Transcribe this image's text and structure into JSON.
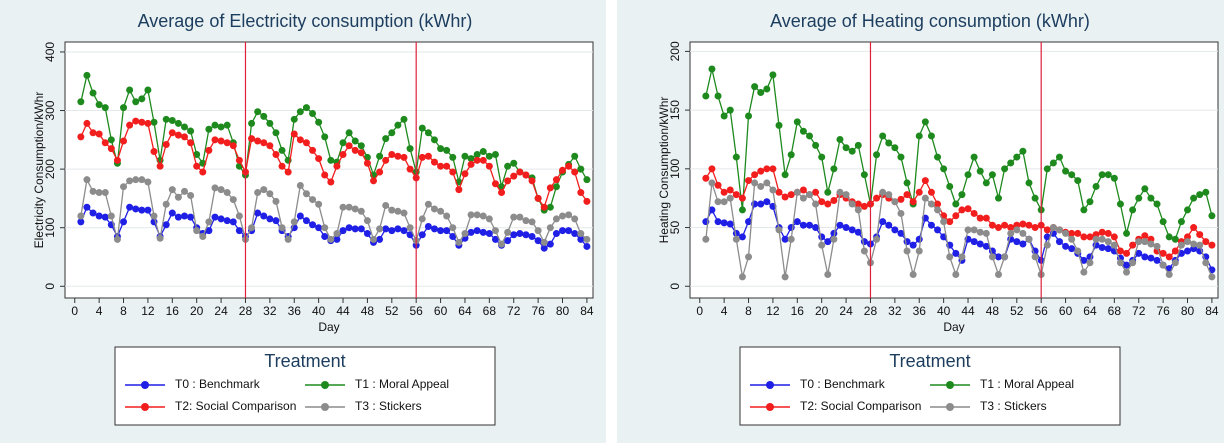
{
  "chart_data": [
    {
      "type": "line",
      "title": "Average of Electricity consumption (kWhr)",
      "x_label": "Day",
      "y_label": "Electricity Consumption/kWhr",
      "x": [
        1,
        2,
        3,
        4,
        5,
        6,
        7,
        8,
        9,
        10,
        11,
        12,
        13,
        14,
        15,
        16,
        17,
        18,
        19,
        20,
        21,
        22,
        23,
        24,
        25,
        26,
        27,
        28,
        29,
        30,
        31,
        32,
        33,
        34,
        35,
        36,
        37,
        38,
        39,
        40,
        41,
        42,
        43,
        44,
        45,
        46,
        47,
        48,
        49,
        50,
        51,
        52,
        53,
        54,
        55,
        56,
        57,
        58,
        59,
        60,
        61,
        62,
        63,
        64,
        65,
        66,
        67,
        68,
        69,
        70,
        71,
        72,
        73,
        74,
        75,
        76,
        77,
        78,
        79,
        80,
        81,
        82,
        83,
        84
      ],
      "xlim": [
        -1.6,
        85
      ],
      "xticks": [
        0,
        4,
        8,
        12,
        16,
        20,
        24,
        28,
        32,
        36,
        40,
        44,
        48,
        52,
        56,
        60,
        64,
        68,
        72,
        76,
        80,
        84
      ],
      "ylim": [
        -20,
        417
      ],
      "yticks": [
        0,
        100,
        200,
        300,
        400
      ],
      "xlines": [
        28,
        56
      ],
      "xline_color": "#e0203a",
      "grid": true,
      "legend_title": "Treatment",
      "series": [
        {
          "name": "T0 : Benchmark",
          "color": "#1f1fe6",
          "values": [
            110,
            135,
            125,
            120,
            118,
            105,
            85,
            110,
            135,
            132,
            130,
            130,
            110,
            85,
            105,
            125,
            118,
            120,
            118,
            100,
            90,
            95,
            118,
            115,
            112,
            110,
            95,
            85,
            95,
            125,
            120,
            115,
            112,
            95,
            85,
            100,
            120,
            112,
            105,
            100,
            85,
            78,
            80,
            95,
            100,
            98,
            98,
            90,
            75,
            80,
            98,
            95,
            98,
            95,
            88,
            70,
            88,
            102,
            98,
            95,
            95,
            85,
            70,
            82,
            92,
            95,
            92,
            90,
            80,
            70,
            78,
            88,
            90,
            88,
            85,
            78,
            65,
            72,
            90,
            95,
            95,
            90,
            80,
            68
          ]
        },
        {
          "name": "T1 : Moral Appeal",
          "color": "#1e8a1e",
          "values": [
            315,
            360,
            330,
            310,
            305,
            250,
            210,
            305,
            335,
            315,
            320,
            335,
            280,
            215,
            285,
            283,
            278,
            272,
            265,
            225,
            210,
            268,
            275,
            272,
            275,
            245,
            205,
            190,
            278,
            298,
            290,
            278,
            262,
            232,
            215,
            285,
            298,
            305,
            295,
            280,
            255,
            215,
            212,
            245,
            262,
            248,
            240,
            220,
            190,
            222,
            252,
            262,
            275,
            285,
            235,
            195,
            270,
            262,
            250,
            235,
            232,
            220,
            178,
            222,
            218,
            225,
            230,
            222,
            225,
            170,
            205,
            210,
            195,
            190,
            185,
            150,
            130,
            135,
            170,
            195,
            208,
            222,
            200,
            182
          ]
        },
        {
          "name": "T2: Social Comparison",
          "color": "#f21d1d",
          "values": [
            255,
            278,
            262,
            260,
            245,
            235,
            215,
            248,
            275,
            282,
            280,
            278,
            230,
            205,
            242,
            262,
            258,
            255,
            245,
            205,
            195,
            232,
            250,
            248,
            245,
            240,
            215,
            195,
            252,
            248,
            245,
            240,
            225,
            205,
            195,
            260,
            250,
            245,
            232,
            218,
            190,
            178,
            205,
            225,
            240,
            232,
            228,
            210,
            180,
            195,
            215,
            225,
            222,
            220,
            200,
            185,
            220,
            222,
            212,
            205,
            205,
            195,
            165,
            192,
            208,
            215,
            215,
            205,
            175,
            160,
            180,
            188,
            195,
            190,
            180,
            150,
            135,
            168,
            182,
            198,
            205,
            195,
            160,
            145
          ]
        },
        {
          "name": "T3 : Stickers",
          "color": "#8c8c8c",
          "values": [
            120,
            182,
            162,
            160,
            160,
            120,
            80,
            170,
            180,
            182,
            182,
            178,
            120,
            82,
            140,
            165,
            152,
            162,
            155,
            95,
            85,
            110,
            168,
            165,
            160,
            148,
            120,
            80,
            100,
            160,
            165,
            158,
            145,
            100,
            80,
            110,
            172,
            158,
            148,
            140,
            100,
            80,
            90,
            135,
            135,
            132,
            128,
            112,
            80,
            98,
            138,
            130,
            128,
            125,
            100,
            78,
            115,
            140,
            132,
            128,
            120,
            100,
            75,
            90,
            122,
            122,
            120,
            115,
            95,
            72,
            92,
            118,
            118,
            112,
            110,
            95,
            75,
            100,
            115,
            120,
            122,
            115,
            90,
            80
          ]
        }
      ]
    },
    {
      "type": "line",
      "title": "Average of Heating consumption (kWhr)",
      "x_label": "Day",
      "y_label": "Heating Consumption/kWhr",
      "x": [
        1,
        2,
        3,
        4,
        5,
        6,
        7,
        8,
        9,
        10,
        11,
        12,
        13,
        14,
        15,
        16,
        17,
        18,
        19,
        20,
        21,
        22,
        23,
        24,
        25,
        26,
        27,
        28,
        29,
        30,
        31,
        32,
        33,
        34,
        35,
        36,
        37,
        38,
        39,
        40,
        41,
        42,
        43,
        44,
        45,
        46,
        47,
        48,
        49,
        50,
        51,
        52,
        53,
        54,
        55,
        56,
        57,
        58,
        59,
        60,
        61,
        62,
        63,
        64,
        65,
        66,
        67,
        68,
        69,
        70,
        71,
        72,
        73,
        74,
        75,
        76,
        77,
        78,
        79,
        80,
        81,
        82,
        83,
        84
      ],
      "xlim": [
        -1.6,
        85
      ],
      "xticks": [
        0,
        4,
        8,
        12,
        16,
        20,
        24,
        28,
        32,
        36,
        40,
        44,
        48,
        52,
        56,
        60,
        64,
        68,
        72,
        76,
        80,
        84
      ],
      "ylim": [
        -10,
        208
      ],
      "yticks": [
        0,
        50,
        100,
        150,
        200
      ],
      "xlines": [
        28,
        56
      ],
      "xline_color": "#e0203a",
      "grid": true,
      "legend_title": "Treatment",
      "series": [
        {
          "name": "T0 : Benchmark",
          "color": "#1f1fe6",
          "values": [
            55,
            65,
            55,
            54,
            53,
            45,
            42,
            55,
            70,
            70,
            72,
            68,
            50,
            40,
            50,
            55,
            52,
            52,
            50,
            42,
            38,
            45,
            52,
            50,
            48,
            46,
            38,
            36,
            42,
            55,
            52,
            48,
            45,
            38,
            35,
            40,
            58,
            52,
            48,
            42,
            35,
            28,
            22,
            40,
            38,
            36,
            34,
            30,
            25,
            25,
            40,
            38,
            36,
            40,
            30,
            22,
            42,
            45,
            38,
            34,
            32,
            28,
            22,
            25,
            35,
            33,
            32,
            30,
            24,
            18,
            22,
            28,
            25,
            24,
            22,
            18,
            15,
            22,
            28,
            30,
            32,
            30,
            25,
            14
          ]
        },
        {
          "name": "T1 : Moral Appeal",
          "color": "#1e8a1e",
          "values": [
            162,
            185,
            162,
            145,
            150,
            110,
            65,
            145,
            170,
            165,
            168,
            180,
            137,
            95,
            112,
            140,
            132,
            128,
            120,
            110,
            80,
            100,
            125,
            118,
            115,
            120,
            95,
            70,
            112,
            128,
            122,
            118,
            110,
            88,
            70,
            128,
            140,
            128,
            110,
            100,
            85,
            70,
            78,
            95,
            110,
            98,
            88,
            95,
            75,
            100,
            105,
            110,
            115,
            88,
            75,
            65,
            100,
            105,
            110,
            98,
            95,
            90,
            65,
            72,
            85,
            95,
            95,
            92,
            70,
            45,
            65,
            75,
            83,
            75,
            70,
            55,
            42,
            40,
            55,
            65,
            75,
            78,
            80,
            60
          ]
        },
        {
          "name": "T2: Social Comparison",
          "color": "#f21d1d",
          "values": [
            92,
            100,
            86,
            80,
            82,
            78,
            75,
            90,
            95,
            98,
            100,
            100,
            80,
            76,
            78,
            80,
            82,
            78,
            80,
            72,
            70,
            73,
            78,
            75,
            72,
            70,
            68,
            70,
            75,
            78,
            75,
            72,
            74,
            78,
            72,
            80,
            90,
            80,
            70,
            60,
            55,
            60,
            65,
            66,
            62,
            58,
            58,
            52,
            50,
            52,
            50,
            52,
            53,
            52,
            50,
            52,
            48,
            50,
            48,
            46,
            45,
            45,
            42,
            42,
            44,
            46,
            45,
            42,
            30,
            28,
            35,
            40,
            43,
            40,
            30,
            28,
            25,
            30,
            38,
            42,
            50,
            44,
            38,
            35
          ]
        },
        {
          "name": "T3 : Stickers",
          "color": "#8c8c8c",
          "values": [
            40,
            88,
            72,
            72,
            75,
            40,
            8,
            25,
            88,
            85,
            88,
            82,
            48,
            8,
            40,
            80,
            75,
            78,
            70,
            35,
            10,
            40,
            80,
            78,
            70,
            65,
            30,
            20,
            40,
            80,
            78,
            72,
            62,
            30,
            10,
            30,
            75,
            70,
            65,
            55,
            25,
            10,
            25,
            48,
            48,
            46,
            45,
            25,
            10,
            25,
            45,
            48,
            45,
            40,
            25,
            10,
            35,
            50,
            48,
            45,
            40,
            30,
            12,
            20,
            40,
            40,
            38,
            35,
            20,
            12,
            20,
            38,
            38,
            36,
            34,
            18,
            10,
            20,
            35,
            38,
            36,
            35,
            20,
            8
          ]
        }
      ]
    }
  ]
}
